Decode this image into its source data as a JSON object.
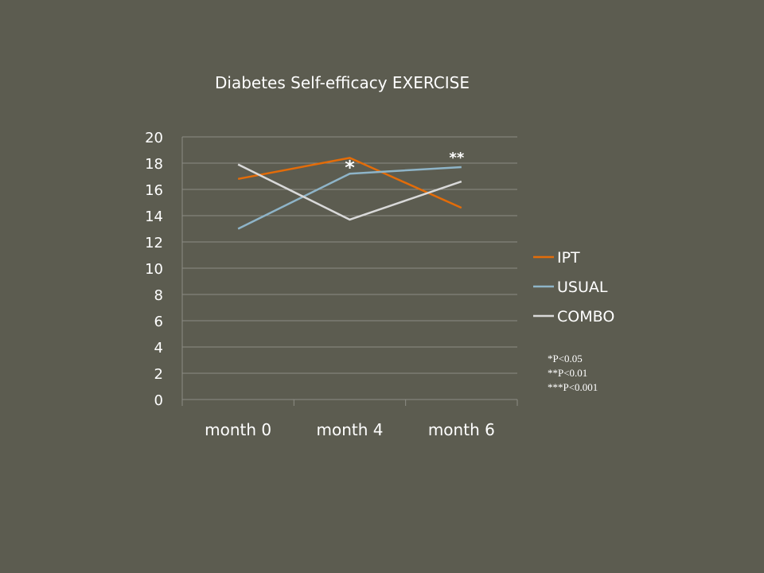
{
  "chart_data": {
    "type": "line",
    "title": "Diabetes Self-efficacy EXERCISE",
    "categories": [
      "month 0",
      "month 4",
      "month 6"
    ],
    "series": [
      {
        "name": "IPT",
        "values": [
          16.8,
          18.4,
          14.6
        ],
        "color": "#e36c09"
      },
      {
        "name": "USUAL",
        "values": [
          13.0,
          17.2,
          17.7
        ],
        "color": "#8eb4c8"
      },
      {
        "name": "COMBO",
        "values": [
          17.9,
          13.7,
          16.6
        ],
        "color": "#d9d9d9"
      }
    ],
    "ylim": [
      0,
      20
    ],
    "yticks": [
      0,
      2,
      4,
      6,
      8,
      10,
      12,
      14,
      16,
      18,
      20
    ],
    "grid": true,
    "legend_position": "right",
    "annotations": [
      {
        "text": "*",
        "category": "month 4"
      },
      {
        "text": "**",
        "category": "month 6"
      }
    ]
  },
  "notes": [
    "*P<0.05",
    "**P<0.01",
    "***P<0.001"
  ]
}
